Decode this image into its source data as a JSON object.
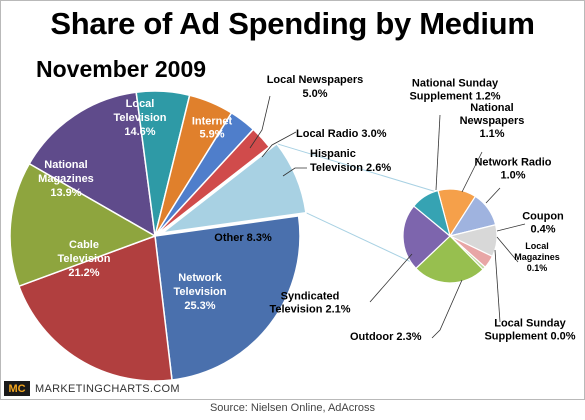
{
  "chart_data": {
    "type": "pie",
    "title": "Share of Ad Spending by Medium",
    "subtitle": "November 2009",
    "unit": "%",
    "main_pie": {
      "slices": [
        {
          "label": "Local Television",
          "value": 14.6,
          "color": "#5f4b8b",
          "text": [
            "Local",
            "Television",
            "14.6%"
          ]
        },
        {
          "label": "Internet",
          "value": 5.9,
          "color": "#2e9aa6",
          "text": [
            "Internet",
            "5.9%"
          ]
        },
        {
          "label": "Local Newspapers",
          "value": 5.0,
          "color": "#e0802c",
          "text": [
            "Local Newspapers",
            "5.0%"
          ]
        },
        {
          "label": "Local Radio",
          "value": 3.0,
          "color": "#4f7ecb",
          "text": [
            "Local Radio 3.0%"
          ]
        },
        {
          "label": "Hispanic Television",
          "value": 2.6,
          "color": "#d04b4b",
          "text": [
            "Hispanic",
            "Television 2.6%"
          ]
        },
        {
          "label": "Other",
          "value": 8.3,
          "color": "#a8d1e3",
          "text": [
            "Other 8.3%"
          ]
        },
        {
          "label": "Network Television",
          "value": 25.3,
          "color": "#4a70ad",
          "text": [
            "Network",
            "Television",
            "25.3%"
          ]
        },
        {
          "label": "Cable Television",
          "value": 21.2,
          "color": "#b13f3f",
          "text": [
            "Cable",
            "Television",
            "21.2%"
          ]
        },
        {
          "label": "National Magazines",
          "value": 13.9,
          "color": "#8ea53e",
          "text": [
            "National",
            "Magazines",
            "13.9%"
          ]
        }
      ]
    },
    "other_breakdown": {
      "slices": [
        {
          "label": "National Sunday Supplement",
          "value": 1.2,
          "color": "#f5a04a",
          "text": [
            "National Sunday",
            "Supplement 1.2%"
          ]
        },
        {
          "label": "National Newspapers",
          "value": 1.1,
          "color": "#9fb3df",
          "text": [
            "National",
            "Newspapers",
            "1.1%"
          ]
        },
        {
          "label": "Network Radio",
          "value": 1.0,
          "color": "#d8d8d8",
          "text": [
            "Network Radio",
            "1.0%"
          ]
        },
        {
          "label": "Coupon",
          "value": 0.4,
          "color": "#e8a6a6",
          "text": [
            "Coupon",
            "0.4%"
          ]
        },
        {
          "label": "Local Magazines",
          "value": 0.1,
          "color": "#c2d9a0",
          "text": [
            "Local",
            "Magazines",
            "0.1%"
          ]
        },
        {
          "label": "Local Sunday Supplement",
          "value": 0.0,
          "color": "#f5c48a",
          "text": [
            "Local Sunday",
            "Supplement 0.0%"
          ]
        },
        {
          "label": "Outdoor",
          "value": 2.3,
          "color": "#97bf4f",
          "text": [
            "Outdoor 2.3%"
          ]
        },
        {
          "label": "Syndicated Television",
          "value": 2.1,
          "color": "#7d65ad",
          "text": [
            "Syndicated",
            "Television 2.1%"
          ]
        },
        {
          "label": "Unlabeled",
          "value": 0.9,
          "color": "#36a3b3",
          "text": []
        }
      ]
    }
  },
  "branding": {
    "logo": "MC",
    "site": "MARKETINGCHARTS.COM",
    "logo_color": "#f2a51e"
  },
  "source": "Source: Nielsen Online, AdAcross"
}
